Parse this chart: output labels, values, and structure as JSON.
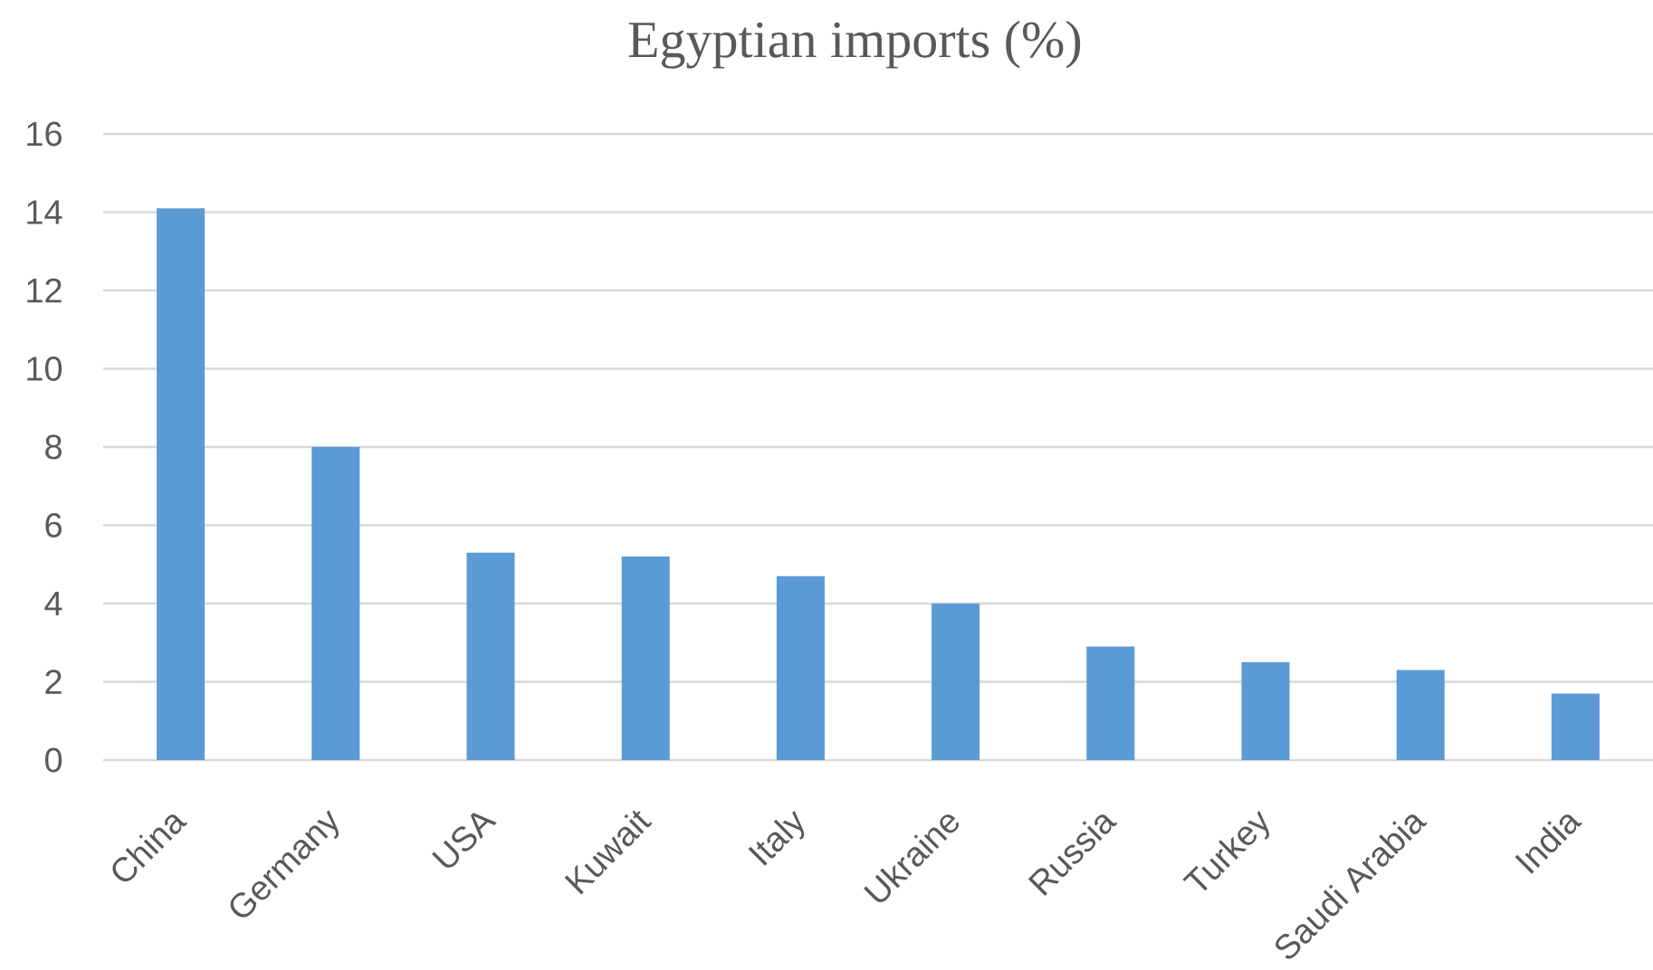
{
  "chart_data": {
    "type": "bar",
    "title": "Egyptian imports (%)",
    "categories": [
      "China",
      "Germany",
      "USA",
      "Kuwait",
      "Italy",
      "Ukraine",
      "Russia",
      "Turkey",
      "Saudi Arabia",
      "India"
    ],
    "values": [
      14.1,
      8.0,
      5.3,
      5.2,
      4.7,
      4.0,
      2.9,
      2.5,
      2.3,
      1.7
    ],
    "color": "#5b9bd5",
    "ylim": [
      0,
      16
    ],
    "yticks": [
      0,
      2,
      4,
      6,
      8,
      10,
      12,
      14,
      16
    ],
    "grid": "y"
  }
}
